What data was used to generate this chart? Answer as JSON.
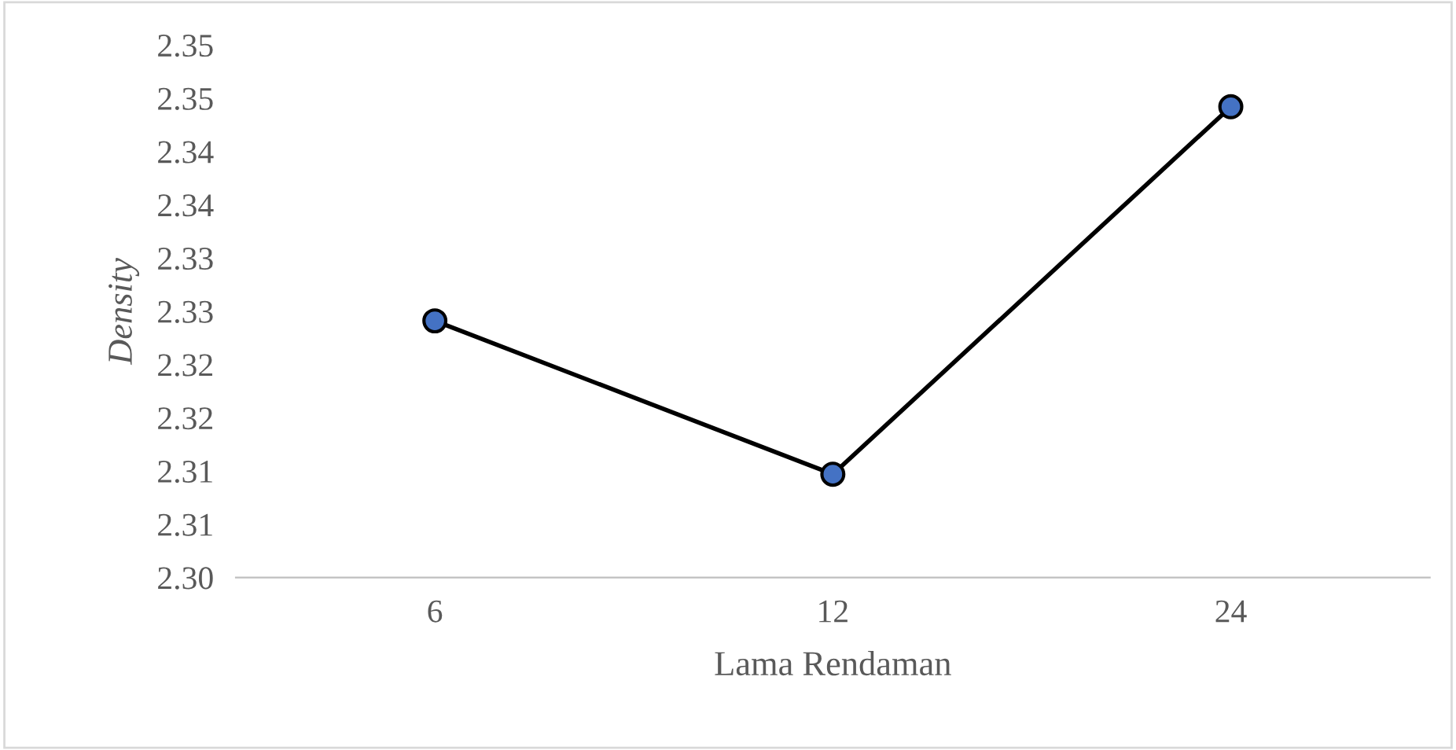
{
  "chart_data": {
    "type": "line",
    "xlabel": "Lama Rendaman",
    "ylabel": "Density",
    "categories": [
      "6",
      "12",
      "24"
    ],
    "series": [
      {
        "color": "#000000",
        "values": [
          2.3241,
          2.3097,
          2.3442
        ]
      }
    ],
    "marker": "circle",
    "ylim": [
      2.3,
      2.35
    ],
    "yticks": [
      {
        "value": 2.3,
        "label": "2.30"
      },
      {
        "value": 2.305,
        "label": "2.31"
      },
      {
        "value": 2.31,
        "label": "2.31"
      },
      {
        "value": 2.315,
        "label": "2.32"
      },
      {
        "value": 2.32,
        "label": "2.32"
      },
      {
        "value": 2.325,
        "label": "2.33"
      },
      {
        "value": 2.33,
        "label": "2.33"
      },
      {
        "value": 2.335,
        "label": "2.34"
      },
      {
        "value": 2.34,
        "label": "2.34"
      },
      {
        "value": 2.345,
        "label": "2.35"
      },
      {
        "value": 2.35,
        "label": "2.35"
      }
    ],
    "grid": false,
    "legend": false
  }
}
